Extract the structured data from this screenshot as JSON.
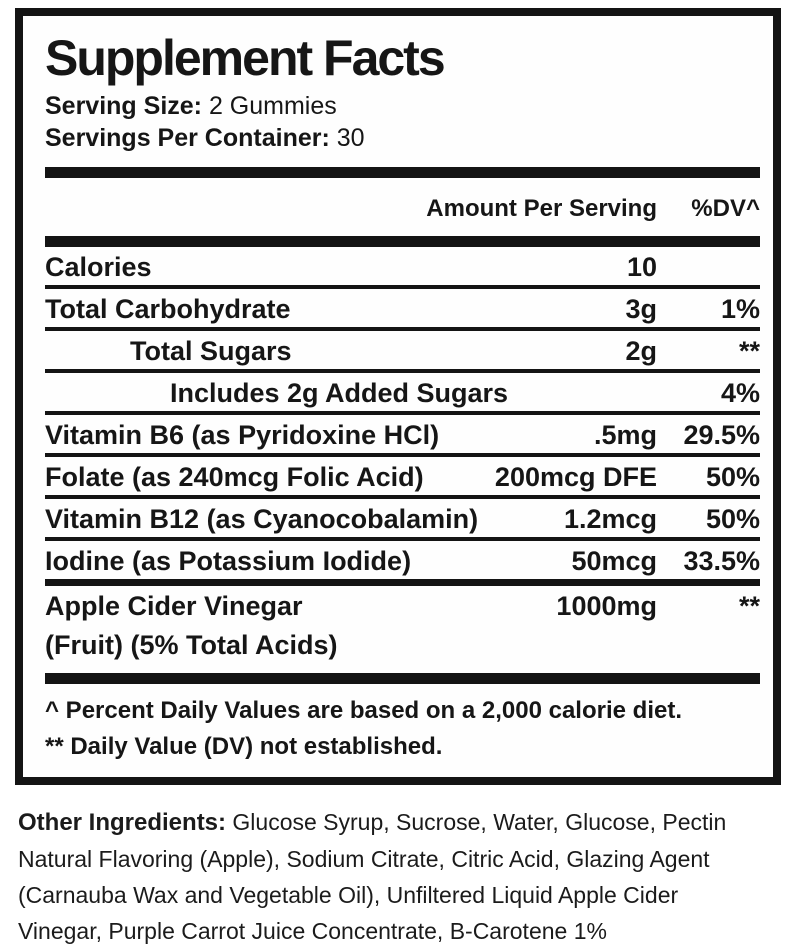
{
  "label": {
    "title": "Supplement Facts",
    "serving": {
      "size_label": "Serving Size:",
      "size_value": " 2 Gummies",
      "container_label": "Servings Per Container:",
      "container_value": " 30"
    },
    "header": {
      "amount": "Amount Per Serving",
      "dv": "%DV^"
    },
    "rows": [
      {
        "name": "Calories",
        "amount": "10",
        "dv": ""
      },
      {
        "name": "Total Carbohydrate",
        "amount": "3g",
        "dv": "1%"
      },
      {
        "name": "Total Sugars",
        "amount": "2g",
        "dv": "**"
      },
      {
        "name": "Includes 2g Added Sugars",
        "amount": "",
        "dv": "4%"
      },
      {
        "name": "Vitamin B6 (as Pyridoxine HCl)",
        "amount": ".5mg",
        "dv": "29.5%"
      },
      {
        "name": "Folate (as 240mcg Folic Acid)",
        "amount": "200mcg DFE",
        "dv": "50%"
      },
      {
        "name": "Vitamin B12 (as Cyanocobalamin)",
        "amount": "1.2mcg",
        "dv": "50%"
      },
      {
        "name": "Iodine (as Potassium Iodide)",
        "amount": "50mcg",
        "dv": "33.5%"
      },
      {
        "name": "Apple Cider Vinegar",
        "name_line2": "(Fruit) (5% Total Acids)",
        "amount": "1000mg",
        "dv": "**"
      }
    ],
    "footnotes": {
      "line1": "^ Percent Daily Values are based on a 2,000 calorie diet.",
      "line2": "** Daily Value (DV) not established."
    }
  },
  "other_ingredients": {
    "label": "Other Ingredients:",
    "text": "  Glucose Syrup, Sucrose, Water, Glucose, Pectin Natural Flavoring (Apple), Sodium Citrate, Citric Acid, Glazing Agent (Carnauba Wax and Vegetable Oil), Unfiltered Liquid Apple Cider Vinegar, Purple Carrot Juice Concentrate, B-Carotene 1%"
  },
  "colors": {
    "ink": "#161616",
    "border": "#141414",
    "background": "#ffffff"
  }
}
